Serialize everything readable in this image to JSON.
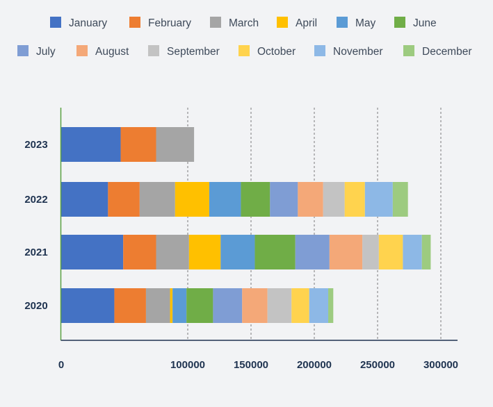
{
  "chart_data": {
    "type": "bar",
    "orientation": "horizontal",
    "stacked": true,
    "title": "",
    "xlabel": "",
    "ylabel": "",
    "xlim": [
      0,
      300000
    ],
    "x_ticks": [
      0,
      100000,
      150000,
      200000,
      250000,
      300000
    ],
    "x_tick_labels": [
      "0",
      "100000",
      "150000",
      "200000",
      "250000",
      "300000"
    ],
    "grid": "vertical dashed",
    "legend_position": "top",
    "categories": [
      "2020",
      "2021",
      "2022",
      "2023"
    ],
    "series": [
      {
        "name": "January",
        "color": "#4472c4",
        "values": [
          42000,
          49000,
          37000,
          47000
        ]
      },
      {
        "name": "February",
        "color": "#ed7d31",
        "values": [
          25000,
          26000,
          25000,
          28000
        ]
      },
      {
        "name": "March",
        "color": "#a5a5a5",
        "values": [
          19000,
          26000,
          28000,
          30000
        ]
      },
      {
        "name": "April",
        "color": "#ffc000",
        "values": [
          2000,
          25000,
          27000,
          0
        ]
      },
      {
        "name": "May",
        "color": "#5b9bd5",
        "values": [
          11000,
          27000,
          25000,
          0
        ]
      },
      {
        "name": "June",
        "color": "#70ad47",
        "values": [
          21000,
          32000,
          23000,
          0
        ]
      },
      {
        "name": "July",
        "color": "#7f9dd4",
        "values": [
          23000,
          27000,
          22000,
          0
        ]
      },
      {
        "name": "August",
        "color": "#f4a878",
        "values": [
          20000,
          26000,
          20000,
          0
        ]
      },
      {
        "name": "September",
        "color": "#c3c3c3",
        "values": [
          19000,
          13000,
          17000,
          0
        ]
      },
      {
        "name": "October",
        "color": "#ffd34e",
        "values": [
          14000,
          19000,
          16000,
          0
        ]
      },
      {
        "name": "November",
        "color": "#8db8e6",
        "values": [
          15000,
          15000,
          22000,
          0
        ]
      },
      {
        "name": "December",
        "color": "#9dcb80",
        "values": [
          4000,
          7000,
          12000,
          0
        ]
      }
    ]
  }
}
